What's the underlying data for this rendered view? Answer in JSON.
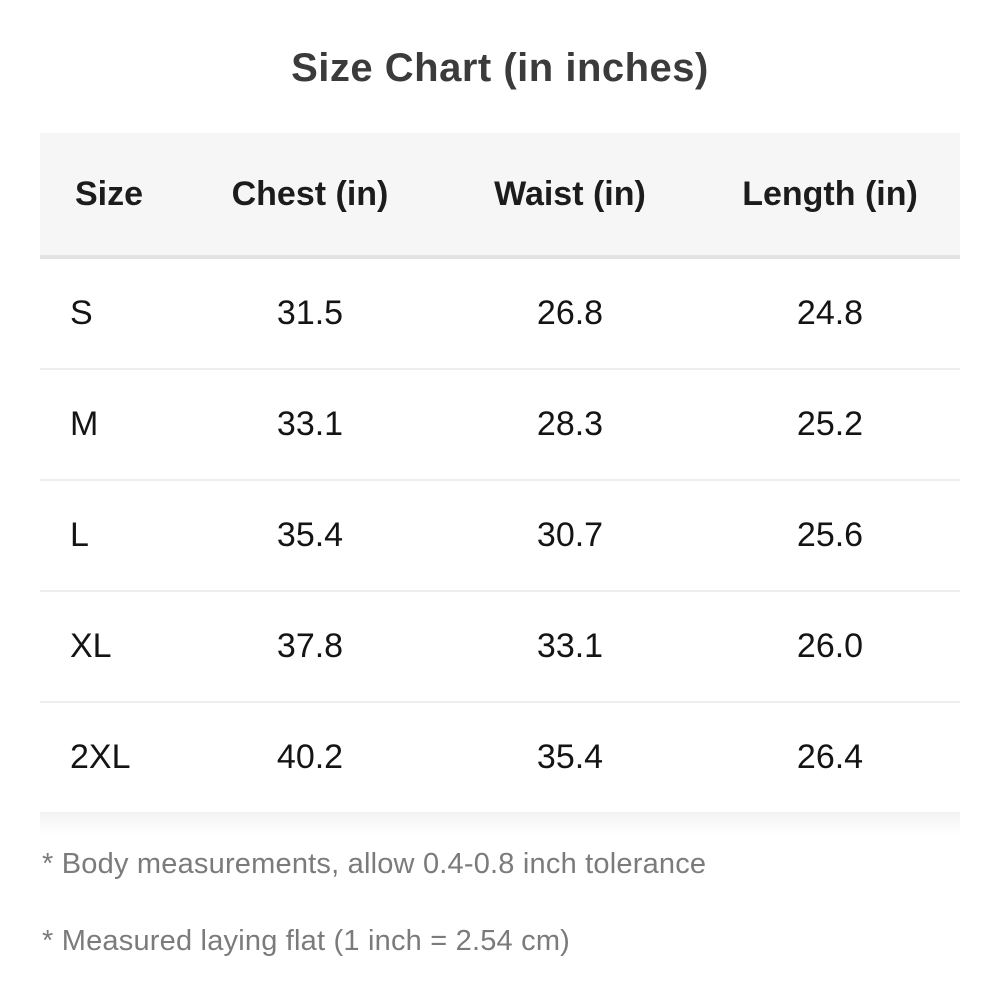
{
  "title": "Size Chart (in inches)",
  "chart_data": {
    "type": "table",
    "title": "Size Chart (in inches)",
    "headers": [
      "Size",
      "Chest (in)",
      "Waist (in)",
      "Length (in)"
    ],
    "rows": [
      [
        "S",
        "31.5",
        "26.8",
        "24.8"
      ],
      [
        "M",
        "33.1",
        "28.3",
        "25.2"
      ],
      [
        "L",
        "35.4",
        "30.7",
        "25.6"
      ],
      [
        "XL",
        "37.8",
        "33.1",
        "26.0"
      ],
      [
        "2XL",
        "40.2",
        "35.4",
        "26.4"
      ]
    ],
    "units": "inches"
  },
  "notes": [
    "* Body measurements, allow 0.4-0.8 inch tolerance",
    "* Measured laying flat (1 inch = 2.54 cm)"
  ],
  "colors": {
    "title_text": "#3b3b3b",
    "header_bg": "#f6f6f6",
    "header_border": "#e3e3e3",
    "row_divider": "#eeeeee",
    "cell_text": "#141414",
    "note_text": "#7b7b7b",
    "page_bg": "#ffffff"
  }
}
